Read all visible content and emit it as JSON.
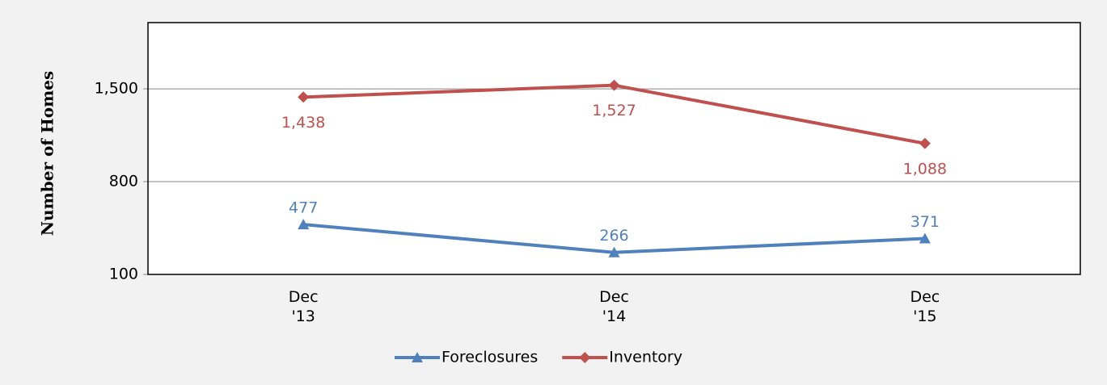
{
  "chart_data": {
    "type": "line",
    "y_label": "Number of Homes",
    "categories": [
      "Dec\n'13",
      "Dec\n'14",
      "Dec\n'15"
    ],
    "series": [
      {
        "name": "Foreclosures",
        "color": "#4f81bd",
        "marker": "triangle",
        "values": [
          477,
          266,
          371
        ],
        "value_labels": [
          "477",
          "266",
          "371"
        ]
      },
      {
        "name": "Inventory",
        "color": "#c0504d",
        "marker": "diamond",
        "values": [
          1438,
          1527,
          1088
        ],
        "value_labels": [
          "1,438",
          "1,527",
          "1,088"
        ]
      }
    ],
    "ylim": [
      100,
      2000
    ],
    "yticks": [
      100,
      800,
      {
        "value": 1500,
        "label": "1,500"
      }
    ],
    "grid": true,
    "legend": "bottom"
  }
}
